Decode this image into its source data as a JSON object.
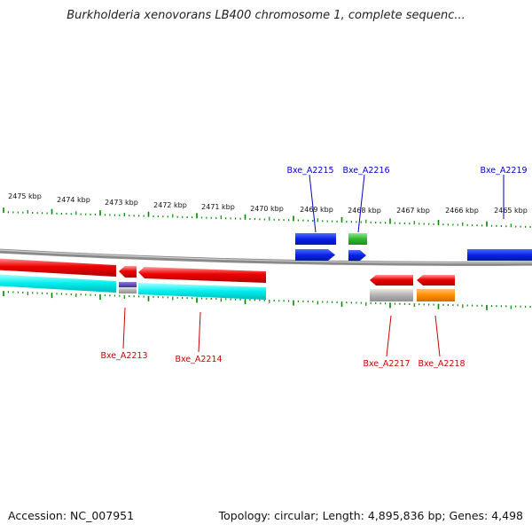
{
  "title": "Burkholderia xenovorans LB400 chromosome 1, complete sequenc...",
  "footer": {
    "accession": "Accession: NC_007951",
    "topology": "Topology: circular; Length: 4,895,836 bp; Genes: 4,498"
  },
  "colors": {
    "forward_label": "#0000cc",
    "reverse_label": "#cc0000",
    "tick": "#008800",
    "backbone": "#8a8a8a"
  },
  "scale_labels": [
    "2475 kbp",
    "2474 kbp",
    "2473 kbp",
    "2472 kbp",
    "2471 kbp",
    "2470 kbp",
    "2469 kbp",
    "2468 kbp",
    "2467 kbp",
    "2466 kbp",
    "2465 kbp"
  ],
  "gene_labels": {
    "forward": [
      "Bxe_A2215",
      "Bxe_A2216",
      "Bxe_A2219"
    ],
    "reverse": [
      "Bxe_A2213",
      "Bxe_A2214",
      "Bxe_A2217",
      "Bxe_A2218"
    ]
  },
  "features": {
    "forward_genes": [
      "blue",
      "blue",
      "blue"
    ],
    "forward_annotations": [
      "blue",
      "green"
    ],
    "reverse_genes": [
      "red",
      "red",
      "red",
      "red",
      "red"
    ],
    "reverse_annotations": [
      "cyan",
      "purple",
      "cyan",
      "grey",
      "orange"
    ]
  }
}
